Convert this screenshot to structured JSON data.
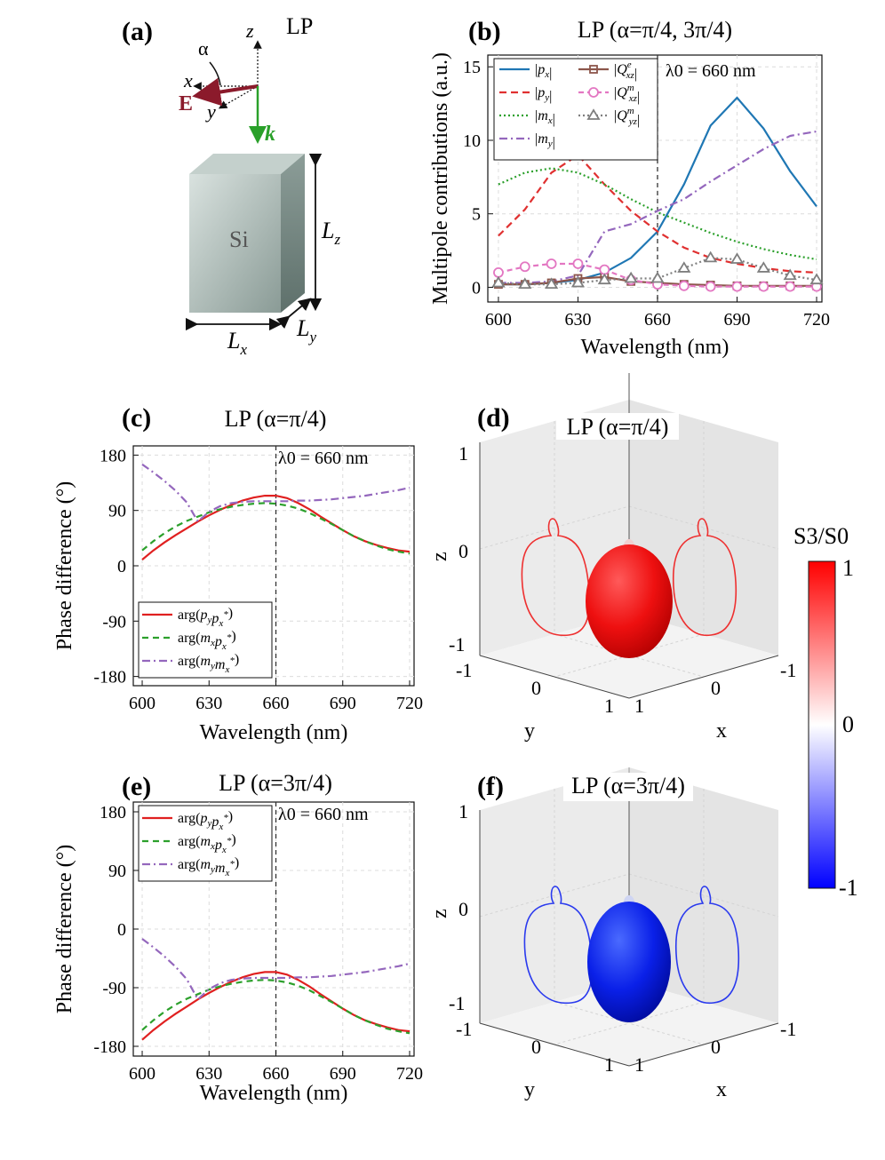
{
  "labels": {
    "a": "(a)",
    "b": "(b)",
    "c": "(c)",
    "d": "(d)",
    "e": "(e)",
    "f": "(f)"
  },
  "panel_a": {
    "title": "LP",
    "alpha": "α",
    "x": "x",
    "y": "y",
    "z": "z",
    "E": "E",
    "k": "k",
    "material": "Si",
    "Lx": "L",
    "Lx_sub": "x",
    "Ly": "L",
    "Ly_sub": "y",
    "Lz": "L",
    "Lz_sub": "z"
  },
  "lambda_label": "λ0 = 660 nm",
  "colorbar": {
    "title": "S3/S0",
    "ticks": [
      "1",
      "0",
      "-1"
    ],
    "color_high": "#ff0000",
    "color_mid": "#ffffff",
    "color_low": "#0000ff"
  },
  "panel_d": {
    "title": "LP (α=π/4)",
    "z_ticks": [
      "1",
      "0",
      "-1"
    ],
    "y_ticks": [
      "-1",
      "0",
      "1"
    ],
    "x_ticks": [
      "-1",
      "0",
      "1"
    ],
    "zlabel": "z",
    "ylabel": "y",
    "xlabel": "x",
    "color": "#ef1e1e"
  },
  "panel_f": {
    "title": "LP (α=3π/4)",
    "z_ticks": [
      "1",
      "0",
      "-1"
    ],
    "y_ticks": [
      "-1",
      "0",
      "1"
    ],
    "x_ticks": [
      "-1",
      "0",
      "1"
    ],
    "zlabel": "z",
    "ylabel": "y",
    "xlabel": "x",
    "color": "#1a1aee"
  },
  "chart_data": [
    {
      "id": "b",
      "type": "line",
      "title": "LP (α=π/4, 3π/4)",
      "xlabel": "Wavelength (nm)",
      "ylabel": "Multipole contributions (a.u.)",
      "xlim": [
        596,
        722
      ],
      "ylim": [
        -1,
        15.8
      ],
      "xticks": [
        600,
        630,
        660,
        690,
        720
      ],
      "yticks": [
        0,
        5,
        10,
        15
      ],
      "vline": 660,
      "x": [
        600,
        610,
        620,
        630,
        640,
        650,
        660,
        670,
        680,
        690,
        700,
        710,
        720
      ],
      "series": [
        {
          "name": "|px|",
          "color": "#1f77b4",
          "dash": "",
          "marker": "",
          "values": [
            0.2,
            0.2,
            0.3,
            0.5,
            1.0,
            2.0,
            3.8,
            7.0,
            11.0,
            12.9,
            10.8,
            7.9,
            5.5
          ]
        },
        {
          "name": "|py|",
          "color": "#e03030",
          "dash": "8,5",
          "marker": "",
          "values": [
            3.5,
            5.3,
            7.8,
            9.0,
            7.0,
            5.2,
            3.8,
            2.7,
            2.0,
            1.6,
            1.3,
            1.1,
            1.0
          ]
        },
        {
          "name": "|mx|",
          "color": "#2ca02c",
          "dash": "2,3",
          "marker": "",
          "values": [
            7.0,
            7.8,
            8.1,
            7.8,
            7.0,
            6.0,
            5.1,
            4.4,
            3.7,
            3.1,
            2.6,
            2.2,
            1.9
          ]
        },
        {
          "name": "|my|",
          "color": "#9467bd",
          "dash": "9,4,2,4",
          "marker": "",
          "values": [
            0.3,
            0.3,
            0.4,
            0.8,
            3.8,
            4.3,
            5.2,
            6.0,
            7.2,
            8.3,
            9.4,
            10.3,
            10.6
          ]
        },
        {
          "name": "|Qexz|",
          "color": "#8c564b",
          "dash": "",
          "marker": "square",
          "values": [
            0.2,
            0.2,
            0.3,
            0.6,
            0.7,
            0.4,
            0.3,
            0.2,
            0.15,
            0.1,
            0.1,
            0.1,
            0.1
          ]
        },
        {
          "name": "|Qmxz|",
          "color": "#e377c2",
          "dash": "6,4",
          "marker": "circle",
          "values": [
            1.0,
            1.4,
            1.6,
            1.6,
            1.2,
            0.5,
            0.2,
            0.1,
            0.05,
            0.05,
            0.05,
            0.05,
            0.05
          ]
        },
        {
          "name": "|Qmyz|",
          "color": "#7f7f7f",
          "dash": "2,3",
          "marker": "triangle",
          "values": [
            0.3,
            0.2,
            0.2,
            0.3,
            0.5,
            0.6,
            0.6,
            1.3,
            2.0,
            1.9,
            1.3,
            0.8,
            0.5
          ]
        }
      ]
    },
    {
      "id": "c",
      "type": "line",
      "title": "LP (α=π/4)",
      "xlabel": "Wavelength (nm)",
      "ylabel": "Phase difference (°)",
      "xlim": [
        596,
        722
      ],
      "ylim": [
        -195,
        195
      ],
      "xticks": [
        600,
        630,
        660,
        690,
        720
      ],
      "yticks": [
        180,
        90,
        0,
        -90,
        -180
      ],
      "vline": 660,
      "x": [
        600,
        605,
        610,
        615,
        620,
        625,
        630,
        635,
        640,
        645,
        650,
        655,
        660,
        665,
        670,
        675,
        680,
        685,
        690,
        695,
        700,
        705,
        710,
        715,
        720
      ],
      "series": [
        {
          "name": "arg(py px*)",
          "color": "#e02020",
          "dash": "",
          "values": [
            10,
            25,
            38,
            50,
            61,
            72,
            82,
            91,
            99,
            106,
            111,
            114,
            114,
            110,
            102,
            92,
            80,
            69,
            58,
            48,
            40,
            34,
            29,
            25,
            23
          ]
        },
        {
          "name": "arg(mx px*)",
          "color": "#2ca02c",
          "dash": "7,5",
          "values": [
            25,
            40,
            53,
            64,
            73,
            80,
            87,
            92,
            96,
            99,
            101,
            102,
            101,
            98,
            93,
            86,
            77,
            68,
            58,
            48,
            40,
            33,
            27,
            23,
            20
          ]
        },
        {
          "name": "arg(my mx*)",
          "color": "#9467bd",
          "dash": "9,4,2,4",
          "values": [
            165,
            152,
            138,
            122,
            103,
            72,
            88,
            97,
            102,
            104,
            105,
            105,
            105,
            105,
            106,
            106,
            107,
            108,
            110,
            112,
            114,
            117,
            120,
            123,
            127
          ]
        }
      ]
    },
    {
      "id": "e",
      "type": "line",
      "title": "LP (α=3π/4)",
      "xlabel": "Wavelength (nm)",
      "ylabel": "Phase difference (°)",
      "xlim": [
        596,
        722
      ],
      "ylim": [
        -195,
        195
      ],
      "xticks": [
        600,
        630,
        660,
        690,
        720
      ],
      "yticks": [
        180,
        90,
        0,
        -90,
        -180
      ],
      "vline": 660,
      "x": [
        600,
        605,
        610,
        615,
        620,
        625,
        630,
        635,
        640,
        645,
        650,
        655,
        660,
        665,
        670,
        675,
        680,
        685,
        690,
        695,
        700,
        705,
        710,
        715,
        720
      ],
      "series": [
        {
          "name": "arg(py px*)",
          "color": "#e02020",
          "dash": "",
          "values": [
            -170,
            -155,
            -142,
            -130,
            -119,
            -108,
            -98,
            -89,
            -81,
            -74,
            -69,
            -66,
            -66,
            -70,
            -78,
            -88,
            -100,
            -111,
            -122,
            -132,
            -140,
            -146,
            -151,
            -155,
            -157
          ]
        },
        {
          "name": "arg(mx px*)",
          "color": "#2ca02c",
          "dash": "7,5",
          "values": [
            -155,
            -140,
            -127,
            -116,
            -107,
            -100,
            -93,
            -88,
            -84,
            -81,
            -79,
            -78,
            -79,
            -82,
            -87,
            -94,
            -103,
            -112,
            -122,
            -132,
            -140,
            -147,
            -153,
            -157,
            -160
          ]
        },
        {
          "name": "arg(my mx*)",
          "color": "#9467bd",
          "dash": "9,4,2,4",
          "values": [
            -15,
            -28,
            -42,
            -58,
            -77,
            -108,
            -92,
            -83,
            -78,
            -76,
            -75,
            -75,
            -75,
            -75,
            -74,
            -74,
            -73,
            -72,
            -70,
            -68,
            -66,
            -63,
            -60,
            -57,
            -53
          ]
        }
      ]
    }
  ]
}
